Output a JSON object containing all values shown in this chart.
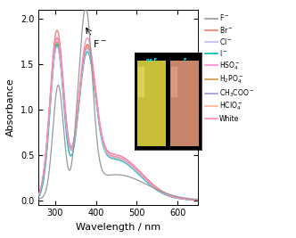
{
  "xlabel": "Wavelength / nm",
  "ylabel": "Absorbance",
  "xlim": [
    260,
    650
  ],
  "ylim": [
    -0.05,
    2.1
  ],
  "yticks": [
    0.0,
    0.5,
    1.0,
    1.5,
    2.0
  ],
  "xticks": [
    300,
    400,
    500,
    600
  ],
  "colors": {
    "F-": "#999999",
    "Br-": "#f08070",
    "Cl-": "#bbbbee",
    "I-": "#00bbbb",
    "HSO4-": "#ff88cc",
    "H2PO4-": "#cc9944",
    "CH3COO-": "#9999cc",
    "HClO4-": "#ffb090",
    "White": "#ff88bb"
  },
  "figsize": [
    3.32,
    2.67
  ],
  "dpi": 100
}
